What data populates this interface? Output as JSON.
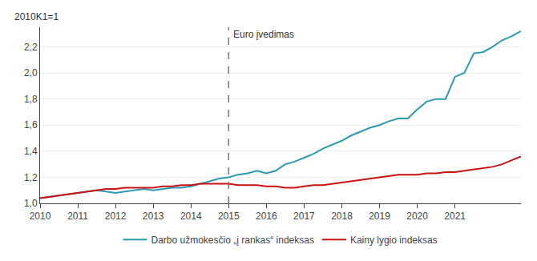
{
  "chart_data": {
    "type": "line",
    "ylabel": "2010K1=1",
    "categories": [
      "2010",
      null,
      null,
      null,
      "2011",
      null,
      null,
      null,
      "2012",
      null,
      null,
      null,
      "2013",
      null,
      null,
      null,
      "2014",
      null,
      null,
      null,
      "2015",
      null,
      null,
      null,
      "2016",
      null,
      null,
      null,
      "2017",
      null,
      null,
      null,
      "2018",
      null,
      null,
      null,
      "2019",
      null,
      null,
      null,
      "2020",
      null,
      null,
      null,
      "2021",
      null,
      null,
      null,
      null,
      null,
      null,
      null
    ],
    "series": [
      {
        "name": "Darbo užmokesčio „į rankas“ indeksas",
        "color": "#2b9ab3",
        "values": [
          1.04,
          1.05,
          1.06,
          1.07,
          1.08,
          1.09,
          1.1,
          1.09,
          1.08,
          1.09,
          1.1,
          1.11,
          1.1,
          1.11,
          1.12,
          1.12,
          1.13,
          1.15,
          1.17,
          1.19,
          1.2,
          1.22,
          1.23,
          1.25,
          1.23,
          1.25,
          1.3,
          1.32,
          1.35,
          1.38,
          1.42,
          1.45,
          1.48,
          1.52,
          1.55,
          1.58,
          1.6,
          1.63,
          1.65,
          1.65,
          1.72,
          1.78,
          1.8,
          1.8,
          1.97,
          2.0,
          2.15,
          2.16,
          2.2,
          2.25,
          2.28,
          2.32
        ]
      },
      {
        "name": "Kainy lygio indeksas",
        "color": "#cc1111",
        "values": [
          1.04,
          1.05,
          1.06,
          1.07,
          1.08,
          1.09,
          1.1,
          1.11,
          1.11,
          1.12,
          1.12,
          1.12,
          1.12,
          1.13,
          1.13,
          1.14,
          1.14,
          1.15,
          1.15,
          1.15,
          1.15,
          1.14,
          1.14,
          1.14,
          1.13,
          1.13,
          1.12,
          1.12,
          1.13,
          1.14,
          1.14,
          1.15,
          1.16,
          1.17,
          1.18,
          1.19,
          1.2,
          1.21,
          1.22,
          1.22,
          1.22,
          1.23,
          1.23,
          1.24,
          1.24,
          1.25,
          1.26,
          1.27,
          1.28,
          1.3,
          1.33,
          1.36
        ]
      }
    ],
    "annotations": [
      {
        "text": "Euro įvedimas",
        "x": "2015"
      }
    ],
    "ylim": [
      1.0,
      2.35
    ],
    "yticks": [
      {
        "value": 1.0,
        "label": "1,0"
      },
      {
        "value": 1.2,
        "label": "1,2"
      },
      {
        "value": 1.4,
        "label": "1,4"
      },
      {
        "value": 1.6,
        "label": "1,6"
      },
      {
        "value": 1.8,
        "label": "1,8"
      },
      {
        "value": 2.0,
        "label": "2,0"
      },
      {
        "value": 2.2,
        "label": "2,2"
      }
    ],
    "grid": true,
    "legend": "bottom"
  }
}
